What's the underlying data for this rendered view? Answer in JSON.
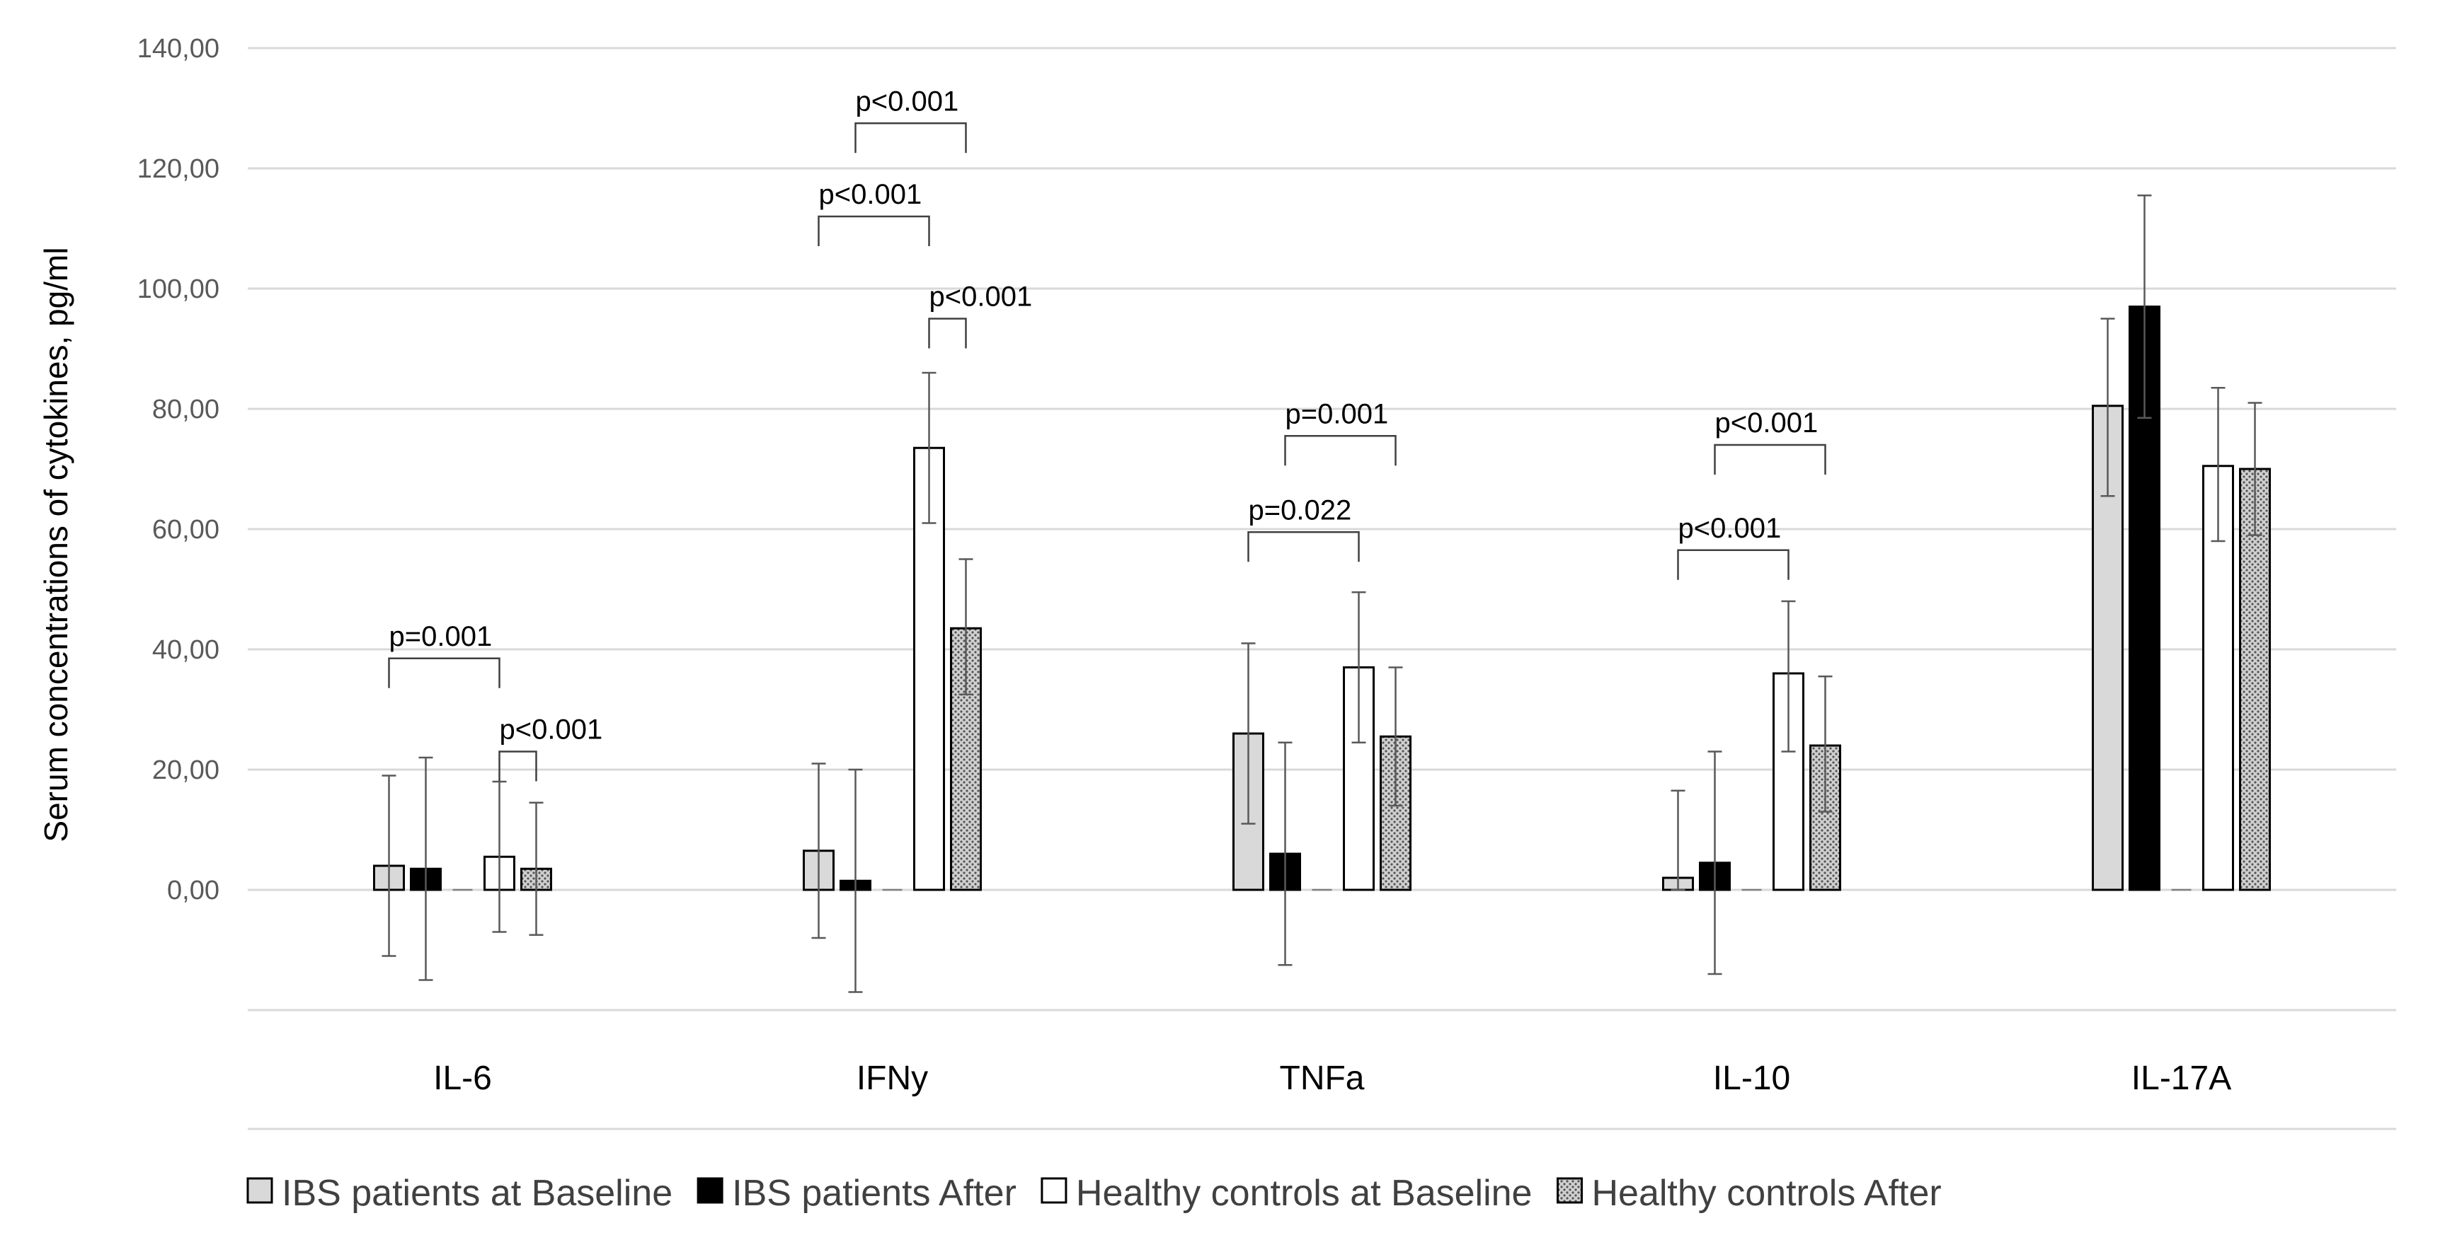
{
  "chart_data": {
    "type": "bar",
    "ylabel": "Serum concentrations of cytokines, pg/ml",
    "xlabel": "",
    "ylim": [
      -20,
      140
    ],
    "yticks": [
      "0,00",
      "20,00",
      "40,00",
      "60,00",
      "80,00",
      "100,00",
      "120,00",
      "140,00"
    ],
    "ytick_values": [
      0,
      20,
      40,
      60,
      80,
      100,
      120,
      140
    ],
    "grid": true,
    "legend_position": "bottom",
    "categories": [
      "IL-6",
      "IFNy",
      "TNFa",
      "IL-10",
      "IL-17A"
    ],
    "series": [
      {
        "name": "IBS patients at Baseline",
        "fill": "#d9d9d9",
        "pattern": "solid",
        "values": [
          4,
          6.5,
          26,
          2,
          80.5
        ],
        "err_low": [
          -11,
          -8,
          11,
          0,
          65.5
        ],
        "err_high": [
          19,
          21,
          41,
          16.5,
          95
        ]
      },
      {
        "name": "IBS patients After",
        "fill": "#000000",
        "pattern": "solid",
        "values": [
          3.5,
          1.5,
          6,
          4.5,
          97
        ],
        "err_low": [
          -15,
          -17,
          -12.5,
          -14,
          78.5
        ],
        "err_high": [
          22,
          20,
          24.5,
          23,
          115.5
        ]
      },
      {
        "name": "",
        "fill": "#ffffff",
        "pattern": "none",
        "values": [
          0,
          0,
          0,
          0,
          0
        ],
        "err_low": [
          null,
          null,
          null,
          null,
          null
        ],
        "err_high": [
          null,
          null,
          null,
          null,
          null
        ]
      },
      {
        "name": "Healthy controls at Baseline",
        "fill": "#ffffff",
        "pattern": "solid",
        "values": [
          5.5,
          73.5,
          37,
          36,
          70.5
        ],
        "err_low": [
          -7,
          61,
          24.5,
          23,
          58
        ],
        "err_high": [
          18,
          86,
          49.5,
          48,
          83.5
        ]
      },
      {
        "name": "Healthy controls After",
        "fill": "#bfbfbf",
        "pattern": "dotted",
        "values": [
          3.5,
          43.5,
          25.5,
          24,
          70
        ],
        "err_low": [
          -7.5,
          32.5,
          14,
          13,
          59
        ],
        "err_high": [
          14.5,
          55,
          37,
          35.5,
          81
        ]
      }
    ],
    "annotations": [
      {
        "text": "p=0.001",
        "category": 0,
        "from_series": 0,
        "to_series": 3,
        "y": 38.5
      },
      {
        "text": "p<0.001",
        "category": 0,
        "from_series": 3,
        "to_series": 4,
        "y": 23
      },
      {
        "text": "p<0.001",
        "category": 1,
        "from_series": 0,
        "to_series": 3,
        "y": 112
      },
      {
        "text": "p<0.001",
        "category": 1,
        "from_series": 1,
        "to_series": 4,
        "y": 127.5
      },
      {
        "text": "p<0.001",
        "category": 1,
        "from_series": 3,
        "to_series": 4,
        "y": 95
      },
      {
        "text": "p=0.022",
        "category": 2,
        "from_series": 0,
        "to_series": 3,
        "y": 59.5
      },
      {
        "text": "p=0.001",
        "category": 2,
        "from_series": 1,
        "to_series": 4,
        "y": 75.5
      },
      {
        "text": "p<0.001",
        "category": 3,
        "from_series": 0,
        "to_series": 3,
        "y": 56.5
      },
      {
        "text": "p<0.001",
        "category": 3,
        "from_series": 1,
        "to_series": 4,
        "y": 74
      }
    ]
  }
}
